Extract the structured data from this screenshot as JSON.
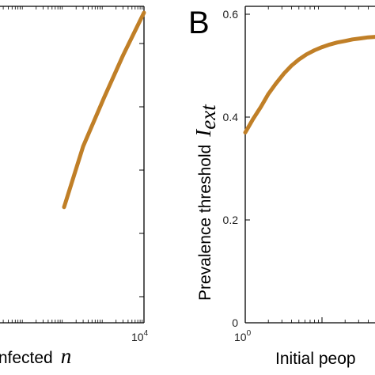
{
  "chart_data": [
    {
      "type": "line",
      "panel": "",
      "xlabel": "Infected",
      "xlabel_symbol": "n",
      "ylabel": "",
      "x_scale": "log",
      "xlim": [
        1,
        10000
      ],
      "x_tick_labels": [
        {
          "base": "10",
          "exp": "4"
        }
      ],
      "color": "#c07f27",
      "series": [
        {
          "x": [
            100,
            300,
            1000,
            3000,
            10000
          ],
          "y": [
            0.36,
            0.56,
            0.72,
            0.86,
            1.0
          ]
        }
      ]
    },
    {
      "type": "line",
      "panel": "B",
      "ylabel": "Prevalence threshold",
      "ylabel_symbol": "I",
      "ylabel_subscript": "ext",
      "xlabel": "Initial peop",
      "x_scale": "log",
      "xlim": [
        1,
        1000
      ],
      "ylim": [
        0,
        0.6
      ],
      "y_ticks": [
        0,
        0.2,
        0.4,
        0.6
      ],
      "y_tick_labels": [
        "0",
        "0.2",
        "0.4",
        "0.6"
      ],
      "x_tick_labels": [
        {
          "base": "10",
          "exp": "0"
        }
      ],
      "color": "#c07f27",
      "series": [
        {
          "x": [
            1,
            1.25,
            1.6,
            2,
            2.5,
            3.2,
            4,
            5,
            6.3,
            8,
            10,
            12.6,
            15.8,
            20,
            25,
            32,
            40,
            50
          ],
          "y": [
            0.37,
            0.395,
            0.42,
            0.445,
            0.465,
            0.485,
            0.5,
            0.512,
            0.522,
            0.53,
            0.536,
            0.541,
            0.545,
            0.548,
            0.551,
            0.553,
            0.555,
            0.556
          ]
        }
      ]
    }
  ]
}
